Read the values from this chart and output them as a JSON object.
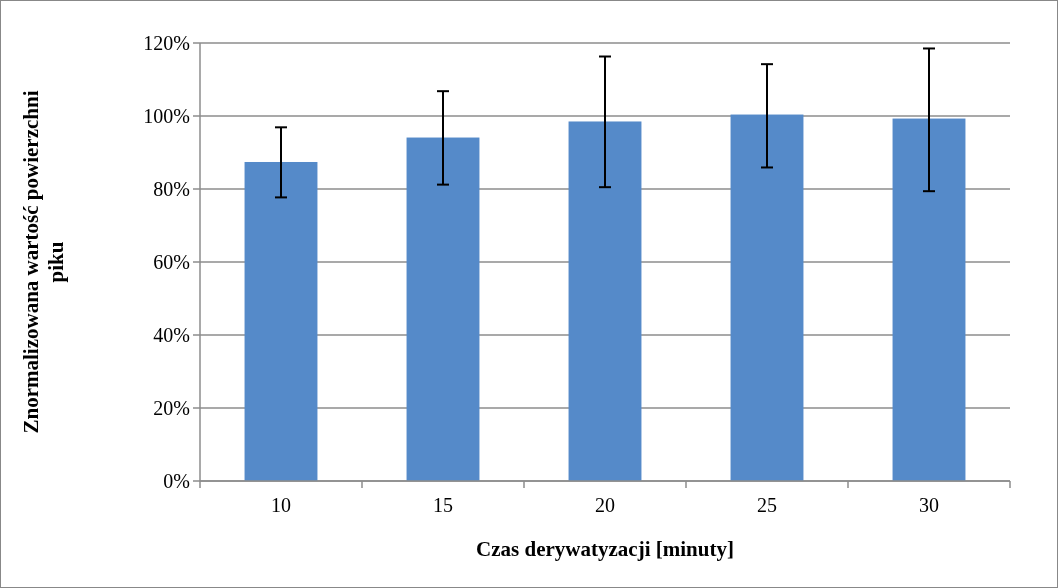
{
  "chart_data": {
    "type": "bar",
    "xlabel": "Czas derywatyzacji [minuty]",
    "ylabel": "Znormalizowana wartość powierzchni piku",
    "categories": [
      "10",
      "15",
      "20",
      "25",
      "30"
    ],
    "values": [
      87.4,
      94.1,
      98.5,
      100.4,
      99.3
    ],
    "color": "#558ac9",
    "errors": [
      [
        77.7,
        96.9
      ],
      [
        81.2,
        106.8
      ],
      [
        80.5,
        116.3
      ],
      [
        85.9,
        114.2
      ],
      [
        79.4,
        118.5
      ]
    ],
    "ylim": [
      0,
      120
    ],
    "yticks": [
      {
        "value": 0,
        "label": "0%"
      },
      {
        "value": 20,
        "label": "20%"
      },
      {
        "value": 40,
        "label": "40%"
      },
      {
        "value": 60,
        "label": "60%"
      },
      {
        "value": 80,
        "label": "80%"
      },
      {
        "value": 100,
        "label": "100%"
      },
      {
        "value": 120,
        "label": "120%"
      }
    ],
    "grid": "y"
  }
}
